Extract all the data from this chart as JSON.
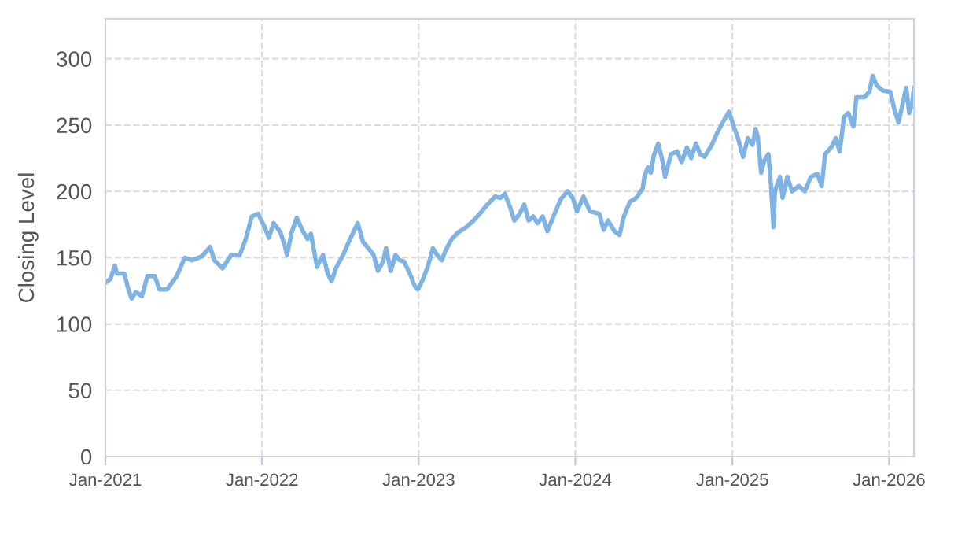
{
  "chart_data": {
    "type": "line",
    "ylabel": "Closing Level",
    "xlim": [
      "2021-01-01",
      "2026-02-28"
    ],
    "xticks": [
      {
        "value": "2021-01-01",
        "label": "Jan-2021"
      },
      {
        "value": "2022-01-01",
        "label": "Jan-2022"
      },
      {
        "value": "2023-01-01",
        "label": "Jan-2023"
      },
      {
        "value": "2024-01-01",
        "label": "Jan-2024"
      },
      {
        "value": "2025-01-01",
        "label": "Jan-2025"
      },
      {
        "value": "2026-01-01",
        "label": "Jan-2026"
      }
    ],
    "ylim": [
      0,
      330
    ],
    "yticks": [
      0,
      50,
      100,
      150,
      200,
      250,
      300
    ],
    "grid": true,
    "marker": "none",
    "line_style": "solid",
    "x": [
      "2021-01-01",
      "2021-01-13",
      "2021-01-23",
      "2021-01-28",
      "2021-02-14",
      "2021-02-22",
      "2021-03-03",
      "2021-03-13",
      "2021-03-27",
      "2021-04-09",
      "2021-04-26",
      "2021-05-07",
      "2021-05-25",
      "2021-06-16",
      "2021-07-05",
      "2021-07-22",
      "2021-08-14",
      "2021-09-02",
      "2021-09-12",
      "2021-10-01",
      "2021-10-21",
      "2021-11-10",
      "2021-11-24",
      "2021-12-08",
      "2021-12-23",
      "2022-01-07",
      "2022-01-17",
      "2022-01-28",
      "2022-02-13",
      "2022-02-23",
      "2022-02-28",
      "2022-03-11",
      "2022-03-23",
      "2022-04-06",
      "2022-04-17",
      "2022-04-25",
      "2022-05-09",
      "2022-05-23",
      "2022-06-03",
      "2022-06-12",
      "2022-06-22",
      "2022-07-09",
      "2022-07-25",
      "2022-08-12",
      "2022-08-24",
      "2022-09-11",
      "2022-09-18",
      "2022-09-28",
      "2022-10-10",
      "2022-10-17",
      "2022-10-28",
      "2022-11-08",
      "2022-11-18",
      "2022-11-28",
      "2022-12-14",
      "2022-12-22",
      "2022-12-30",
      "2023-01-10",
      "2023-01-21",
      "2023-02-03",
      "2023-02-13",
      "2023-02-24",
      "2023-03-04",
      "2023-03-19",
      "2023-04-03",
      "2023-04-22",
      "2023-05-09",
      "2023-05-23",
      "2023-06-10",
      "2023-06-28",
      "2023-07-11",
      "2023-07-21",
      "2023-08-02",
      "2023-08-12",
      "2023-08-24",
      "2023-09-04",
      "2023-09-14",
      "2023-09-25",
      "2023-10-05",
      "2023-10-17",
      "2023-10-28",
      "2023-11-16",
      "2023-11-28",
      "2023-12-14",
      "2023-12-26",
      "2024-01-05",
      "2024-01-20",
      "2024-02-04",
      "2024-02-26",
      "2024-03-07",
      "2024-03-17",
      "2024-04-01",
      "2024-04-13",
      "2024-04-23",
      "2024-05-07",
      "2024-05-22",
      "2024-06-06",
      "2024-06-10",
      "2024-06-18",
      "2024-06-25",
      "2024-07-02",
      "2024-07-12",
      "2024-07-22",
      "2024-07-28",
      "2024-08-11",
      "2024-08-25",
      "2024-09-05",
      "2024-09-17",
      "2024-09-27",
      "2024-10-08",
      "2024-10-18",
      "2024-10-28",
      "2024-11-14",
      "2024-11-28",
      "2024-12-13",
      "2024-12-24",
      "2025-01-04",
      "2025-01-14",
      "2025-01-26",
      "2025-02-06",
      "2025-02-17",
      "2025-02-24",
      "2025-03-01",
      "2025-03-09",
      "2025-03-16",
      "2025-03-26",
      "2025-04-01",
      "2025-04-07",
      "2025-04-10",
      "2025-04-22",
      "2025-04-28",
      "2025-05-09",
      "2025-05-20",
      "2025-06-05",
      "2025-06-19",
      "2025-07-03",
      "2025-07-18",
      "2025-07-28",
      "2025-08-05",
      "2025-08-19",
      "2025-08-30",
      "2025-09-08",
      "2025-09-18",
      "2025-09-28",
      "2025-10-10",
      "2025-10-17",
      "2025-11-05",
      "2025-11-16",
      "2025-11-24",
      "2025-12-03",
      "2025-12-17",
      "2026-01-04",
      "2026-01-14",
      "2026-01-23",
      "2026-01-28",
      "2026-02-10",
      "2026-02-17",
      "2026-02-24",
      "2026-02-28"
    ],
    "series": [
      {
        "color": "#7eb3e4",
        "values": [
          131,
          134,
          144,
          138,
          138,
          128,
          119,
          124,
          121,
          136,
          136,
          126,
          126,
          136,
          150,
          148,
          151,
          158,
          148,
          142,
          152,
          152,
          164,
          181,
          183,
          173,
          165,
          176,
          169,
          159,
          152,
          169,
          180,
          170,
          164,
          168,
          143,
          152,
          138,
          132,
          142,
          152,
          164,
          176,
          162,
          155,
          152,
          140,
          147,
          157,
          140,
          152,
          148,
          147,
          136,
          129,
          126,
          133,
          142,
          157,
          152,
          148,
          155,
          164,
          169,
          173,
          178,
          183,
          190,
          196,
          195,
          198,
          188,
          178,
          183,
          190,
          178,
          181,
          176,
          181,
          170,
          185,
          194,
          200,
          195,
          185,
          196,
          185,
          183,
          171,
          178,
          170,
          167,
          181,
          192,
          195,
          202,
          211,
          218,
          214,
          227,
          236,
          223,
          211,
          228,
          230,
          222,
          233,
          225,
          236,
          228,
          226,
          235,
          245,
          254,
          260,
          249,
          240,
          226,
          240,
          235,
          247,
          241,
          214,
          223,
          228,
          204,
          173,
          200,
          211,
          195,
          211,
          200,
          204,
          200,
          211,
          213,
          204,
          228,
          233,
          240,
          230,
          256,
          259,
          249,
          271,
          271,
          275,
          287,
          280,
          276,
          275,
          261,
          252,
          259,
          278,
          259,
          266,
          278
        ]
      }
    ]
  }
}
